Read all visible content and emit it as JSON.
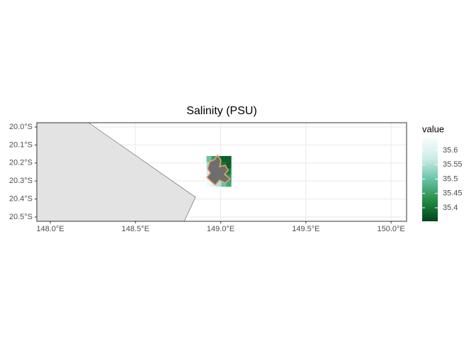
{
  "chart_data": {
    "type": "raster",
    "title": "Salinity (PSU)",
    "xlim": [
      147.921,
      150.091
    ],
    "ylim": [
      -20.524,
      -19.976
    ],
    "xticks": [
      {
        "value": 148.0,
        "label": "148.0°E"
      },
      {
        "value": 148.5,
        "label": "148.5°E"
      },
      {
        "value": 149.0,
        "label": "149.0°E"
      },
      {
        "value": 149.5,
        "label": "149.5°E"
      },
      {
        "value": 150.0,
        "label": "150.0°E"
      }
    ],
    "yticks": [
      {
        "value": -20.0,
        "label": "20.0°S"
      },
      {
        "value": -20.1,
        "label": "20.1°S"
      },
      {
        "value": -20.2,
        "label": "20.2°S"
      },
      {
        "value": -20.3,
        "label": "20.3°S"
      },
      {
        "value": -20.4,
        "label": "20.4°S"
      },
      {
        "value": -20.5,
        "label": "20.5°S"
      }
    ],
    "grid": true,
    "land": {
      "x": [
        147.921,
        148.225,
        148.852,
        148.786,
        147.921
      ],
      "y": [
        -19.976,
        -19.976,
        -20.39,
        -20.524,
        -20.524
      ],
      "color": "#e3e3e3"
    },
    "raster": {
      "x": [
        148.931,
        148.96,
        148.989,
        149.018,
        149.047
      ],
      "y": [
        -20.178,
        -20.212,
        -20.246,
        -20.28,
        -20.314
      ],
      "values": [
        [
          35.5,
          35.45,
          35.4,
          35.38,
          35.38
        ],
        [
          35.55,
          35.5,
          35.45,
          35.4,
          35.38
        ],
        [
          35.58,
          35.54,
          35.49,
          35.44,
          35.41
        ],
        [
          35.61,
          35.57,
          35.52,
          35.47,
          35.44
        ],
        [
          35.63,
          35.6,
          35.55,
          35.5,
          35.46
        ]
      ]
    },
    "legend": {
      "title": "value",
      "lim": [
        35.353,
        35.642
      ],
      "ticks": [
        35.4,
        35.45,
        35.5,
        35.55,
        35.6
      ],
      "colors": [
        "#00441b",
        "#238b45",
        "#66c2a4",
        "#ccece6",
        "#f7fcfd"
      ]
    }
  }
}
